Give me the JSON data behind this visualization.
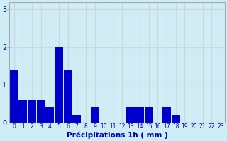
{
  "values": [
    1.4,
    0.6,
    0.6,
    0.6,
    0.4,
    2.0,
    1.4,
    0.2,
    0.0,
    0.4,
    0.0,
    0.0,
    0.0,
    0.4,
    0.4,
    0.4,
    0.0,
    0.4,
    0.2,
    0.0,
    0.0,
    0.0,
    0.0,
    0.0
  ],
  "categories": [
    "0",
    "1",
    "2",
    "3",
    "4",
    "5",
    "6",
    "7",
    "8",
    "9",
    "10",
    "11",
    "12",
    "13",
    "14",
    "15",
    "16",
    "17",
    "18",
    "19",
    "20",
    "21",
    "22",
    "23"
  ],
  "bar_color": "#0000cc",
  "background_color": "#d0ecf4",
  "grid_color": "#c8d8e0",
  "xlabel": "Précipitations 1h ( mm )",
  "xlabel_color": "#0000bb",
  "tick_color": "#0000bb",
  "ylim": [
    0,
    3.2
  ],
  "yticks": [
    0,
    1,
    2,
    3
  ],
  "axis_line_color": "#aaaaaa"
}
